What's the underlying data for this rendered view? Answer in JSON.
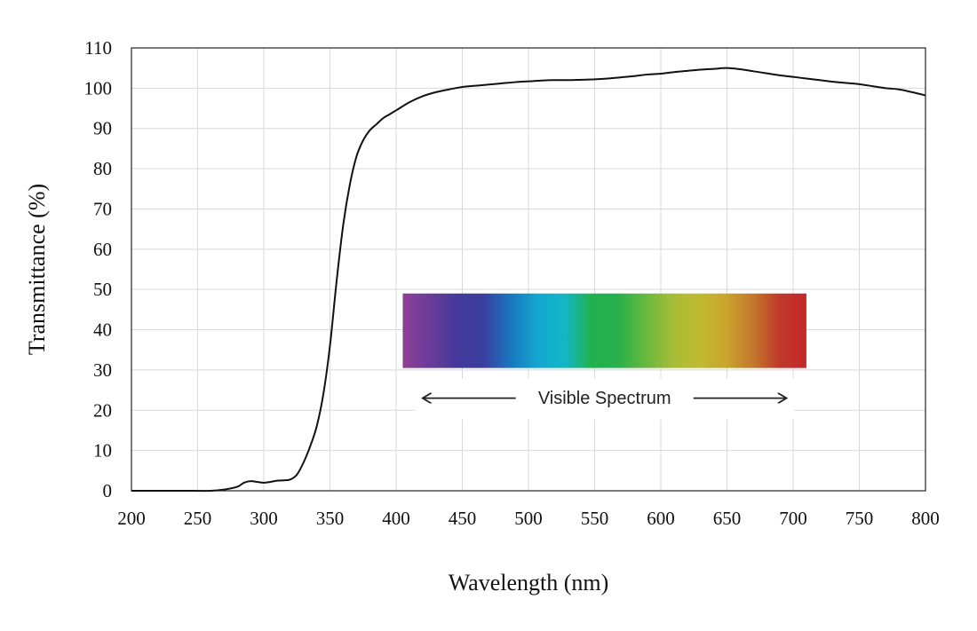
{
  "chart_data": {
    "type": "line",
    "xlabel": "Wavelength (nm)",
    "ylabel": "Transmittance (%)",
    "xlim": [
      200,
      800
    ],
    "ylim": [
      0,
      110
    ],
    "xticks": [
      200,
      250,
      300,
      350,
      400,
      450,
      500,
      550,
      600,
      650,
      700,
      750,
      800
    ],
    "yticks": [
      0,
      10,
      20,
      30,
      40,
      50,
      60,
      70,
      80,
      90,
      100,
      110
    ],
    "grid": true,
    "series": [
      {
        "color": "#111111",
        "x": [
          200,
          220,
          240,
          260,
          270,
          280,
          285,
          290,
          295,
          300,
          305,
          310,
          315,
          320,
          325,
          330,
          335,
          340,
          345,
          350,
          355,
          360,
          365,
          370,
          375,
          380,
          385,
          390,
          395,
          400,
          410,
          420,
          430,
          440,
          450,
          460,
          470,
          480,
          490,
          500,
          510,
          520,
          530,
          540,
          550,
          560,
          570,
          580,
          590,
          600,
          610,
          620,
          630,
          640,
          650,
          660,
          670,
          680,
          690,
          700,
          710,
          720,
          730,
          740,
          750,
          760,
          770,
          780,
          790,
          800
        ],
        "y": [
          0,
          0,
          0,
          0,
          0.3,
          1.0,
          2.0,
          2.4,
          2.2,
          2.0,
          2.2,
          2.5,
          2.6,
          2.8,
          4.0,
          7.0,
          11.0,
          16.0,
          24.0,
          36.0,
          52.0,
          66.0,
          76.0,
          83.0,
          87.0,
          89.5,
          91.0,
          92.5,
          93.5,
          94.5,
          96.5,
          98.0,
          99.0,
          99.7,
          100.3,
          100.6,
          100.9,
          101.2,
          101.5,
          101.7,
          101.9,
          102.0,
          102.0,
          102.1,
          102.2,
          102.4,
          102.7,
          103.0,
          103.4,
          103.6,
          104.0,
          104.3,
          104.6,
          104.8,
          105.0,
          104.7,
          104.2,
          103.7,
          103.2,
          102.8,
          102.4,
          102.0,
          101.6,
          101.3,
          101.0,
          100.5,
          100.0,
          99.7,
          99.0,
          98.2
        ]
      }
    ],
    "annotations": {
      "spectrum_band": {
        "x_start": 405,
        "x_end": 710,
        "y_bottom": 30.5,
        "y_top": 49
      },
      "arrow_label": "Visible Spectrum",
      "arrow_from": 420,
      "arrow_to": 695
    },
    "spectrum_colors": [
      "#8e3f97",
      "#6a3c98",
      "#44399a",
      "#3a3f9e",
      "#1777be",
      "#13a6cf",
      "#12b7c7",
      "#20b24f",
      "#28b04a",
      "#66b83f",
      "#a4bc37",
      "#c0bb30",
      "#c9a52d",
      "#c4782c",
      "#bf3a2a",
      "#c3262a"
    ]
  }
}
